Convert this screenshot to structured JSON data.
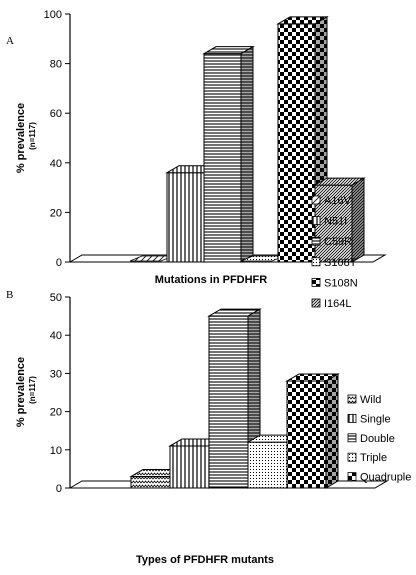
{
  "chart_data": [
    {
      "panel_label": "A",
      "type": "bar",
      "style": "3d",
      "categories": [
        "A16V",
        "N51I",
        "C59R",
        "S108T",
        "S108N",
        "I164L"
      ],
      "values": [
        0,
        36,
        84,
        0,
        96,
        31
      ],
      "patterns": [
        "diag-light",
        "vlines",
        "hlines",
        "dots",
        "check",
        "diag-dense"
      ],
      "xlabel": "Mutations in PFDHFR",
      "ylabel": "% prevalence",
      "ylabel_sub": "(n=117)",
      "ylim": [
        0,
        100
      ],
      "yticks": [
        0,
        20,
        40,
        60,
        80,
        100
      ],
      "legend": [
        "A16V",
        "N51I",
        "C59R",
        "S108T",
        "S108N",
        "I164L"
      ],
      "legend_position": "right"
    },
    {
      "panel_label": "B",
      "type": "bar",
      "style": "3d",
      "categories": [
        "Wild",
        "Single",
        "Double",
        "Triple",
        "Quadruple"
      ],
      "values": [
        3,
        11,
        45,
        12,
        28
      ],
      "patterns": [
        "zigzag",
        "vlines",
        "hlines",
        "dots",
        "check"
      ],
      "xlabel": "Types of PFDHFR mutants",
      "ylabel": "% prevalence",
      "ylabel_sub": "(n=117)",
      "ylim": [
        0,
        50
      ],
      "yticks": [
        0,
        10,
        20,
        30,
        40,
        50
      ],
      "legend": [
        "Wild",
        "Single",
        "Double",
        "Triple",
        "Quadruple"
      ],
      "legend_position": "right"
    }
  ]
}
